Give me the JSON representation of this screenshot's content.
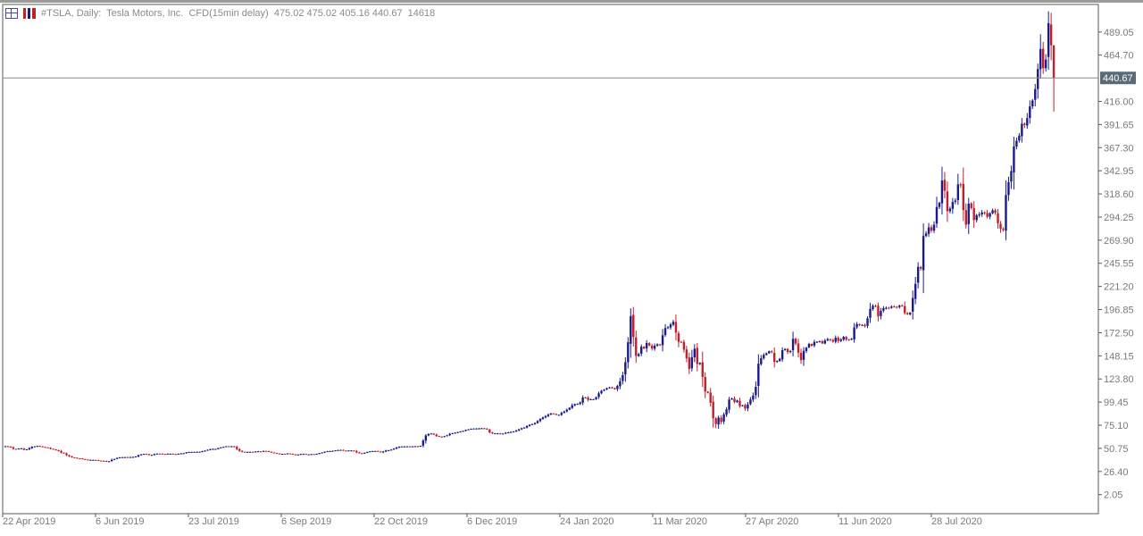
{
  "header": {
    "symbol_info": "#TSLA, Daily:  Tesla Motors, Inc.  CFD(15min delay)  475.02 475.02 405.16 440.67  14618",
    "icons": [
      "chart-grid-icon",
      "chart-bars-icon"
    ]
  },
  "colors": {
    "bull": "#1a1a8c",
    "bear": "#c0202b",
    "price_line": "#8a8a8a",
    "price_tag_bg": "#5a6a78",
    "axis_text": "#7a7a7a"
  },
  "chart_data": {
    "type": "candlestick",
    "title": "#TSLA, Daily",
    "ylim": [
      -18,
      518
    ],
    "y_ticks": [
      "489.05",
      "464.70",
      "416.00",
      "391.65",
      "367.30",
      "342.95",
      "318.60",
      "294.25",
      "269.90",
      "245.55",
      "221.20",
      "196.85",
      "172.50",
      "148.15",
      "123.80",
      "99.45",
      "75.10",
      "50.75",
      "26.40",
      "2.05"
    ],
    "x_ticks": [
      "22 Apr 2019",
      "6 Jun 2019",
      "23 Jul 2019",
      "6 Sep 2019",
      "22 Oct 2019",
      "6 Dec 2019",
      "24 Jan 2020",
      "11 Mar 2020",
      "27 Apr 2020",
      "11 Jun 2020",
      "28 Jul 2020"
    ],
    "current_price": "440.67",
    "last_bar": {
      "open": 475.02,
      "high": 475.02,
      "low": 405.16,
      "close": 440.67
    },
    "close_series": [
      53.0,
      52.6,
      51.9,
      50.2,
      49.9,
      50.5,
      50.8,
      49.4,
      49.7,
      51.0,
      52.4,
      52.8,
      53.3,
      52.8,
      52.2,
      51.8,
      51.3,
      50.3,
      49.6,
      48.8,
      47.9,
      46.2,
      45.5,
      43.6,
      42.3,
      41.3,
      40.9,
      40.2,
      40.0,
      39.5,
      39.0,
      38.6,
      38.6,
      38.6,
      38.3,
      37.8,
      37.7,
      37.4,
      36.7,
      37.2,
      38.8,
      39.6,
      40.6,
      41.3,
      41.4,
      41.5,
      41.3,
      41.6,
      41.7,
      42.2,
      43.5,
      44.4,
      44.9,
      44.6,
      43.6,
      43.8,
      44.7,
      45.2,
      45.1,
      44.8,
      44.6,
      45.1,
      45.1,
      44.7,
      44.5,
      45.0,
      45.5,
      45.6,
      46.6,
      46.9,
      47.0,
      47.0,
      47.1,
      47.1,
      47.8,
      48.4,
      49.2,
      49.9,
      50.1,
      50.1,
      51.1,
      51.7,
      52.4,
      53.0,
      52.8,
      52.9,
      52.4,
      50.0,
      48.1,
      47.1,
      46.9,
      47.0,
      47.1,
      47.0,
      47.4,
      47.6,
      47.5,
      48.0,
      47.8,
      47.2,
      46.4,
      45.9,
      45.3,
      45.0,
      45.0,
      44.8,
      45.4,
      45.0,
      44.4,
      43.9,
      44.2,
      44.8,
      44.9,
      44.4,
      44.4,
      44.7,
      44.6,
      44.9,
      45.8,
      46.3,
      47.2,
      47.7,
      47.9,
      48.1,
      48.6,
      48.9,
      49.1,
      48.4,
      48.2,
      48.5,
      48.5,
      48.0,
      46.5,
      45.6,
      45.3,
      46.0,
      47.0,
      47.6,
      47.9,
      48.0,
      47.4,
      46.5,
      47.4,
      48.5,
      48.8,
      49.4,
      50.5,
      51.6,
      52.4,
      52.7,
      52.8,
      52.8,
      52.7,
      52.8,
      53.0,
      52.7,
      53.4,
      59.0,
      64.3,
      65.8,
      66.3,
      65.3,
      63.7,
      63.1,
      62.9,
      63.5,
      64.5,
      66.1,
      66.7,
      67.3,
      67.8,
      68.5,
      69.2,
      70.2,
      70.7,
      71.3,
      71.6,
      71.6,
      71.7,
      71.9,
      71.5,
      70.7,
      67.5,
      66.5,
      66.5,
      66.5,
      66.0,
      66.3,
      67.3,
      67.6,
      68.0,
      68.5,
      69.6,
      70.7,
      72.0,
      72.6,
      74.3,
      75.7,
      76.2,
      77.4,
      79.5,
      81.6,
      83.3,
      84.7,
      86.3,
      87.5,
      87.1,
      86.0,
      86.0,
      88.0,
      89.5,
      91.4,
      93.5,
      96.0,
      97.3,
      97.5,
      99.1,
      104.3,
      104.0,
      101.8,
      102.4,
      102.5,
      104.5,
      108.6,
      111.4,
      112.4,
      114.0,
      114.9,
      114.3,
      113.2,
      116.5,
      121.3,
      127.8,
      141.5,
      162.5,
      190.0,
      168.0,
      148.0,
      150.0,
      157.7,
      156.0,
      161.6,
      159.1,
      155.8,
      158.8,
      160.2,
      159.5,
      169.8,
      177.4,
      178.2,
      181.2,
      183.9,
      172.5,
      162.8,
      162.7,
      154.7,
      145.5,
      134.4,
      146.7,
      155.6,
      139.5,
      140.7,
      126.0,
      110.6,
      109.2,
      98.7,
      82.4,
      76.3,
      83.1,
      78.5,
      86.4,
      91.8,
      102.1,
      103.2,
      99.4,
      101.1,
      95.2,
      96.1,
      92.6,
      97.0,
      102.2,
      106.4,
      115.5,
      139.8,
      145.6,
      149.2,
      150.8,
      153.0,
      151.9,
      141.8,
      142.7,
      145.0,
      154.1,
      155.2,
      152.0,
      153.1,
      166.1,
      161.1,
      151.4,
      143.6,
      153.4,
      156.7,
      160.6,
      158.8,
      162.8,
      163.0,
      163.4,
      161.2,
      164.2,
      165.7,
      164.7,
      163.1,
      167.2,
      163.8,
      165.4,
      168.1,
      165.2,
      165.1,
      166.0,
      178.0,
      181.6,
      180.6,
      180.7,
      179.2,
      187.6,
      197.5,
      200.8,
      200.2,
      189.6,
      195.4,
      198.4,
      198.7,
      198.5,
      200.0,
      199.8,
      199.5,
      201.0,
      200.7,
      193.2,
      191.9,
      193.5,
      209.1,
      223.9,
      241.7,
      240.0,
      274.3,
      277.0,
      283.4,
      279.8,
      286.2,
      304.8,
      309.2,
      332.6,
      322.0,
      300.4,
      303.1,
      310.1,
      311.6,
      328.6,
      327.8,
      301.5,
      286.2,
      308.3,
      303.7,
      291.2,
      296.2,
      297.0,
      299.1,
      298.7,
      294.4,
      298.2,
      301.3,
      298.7,
      287.6,
      281.8,
      280.7,
      317.4,
      331.0,
      342.6,
      368.6,
      374.6,
      380.0,
      392.5,
      391.0,
      398.3,
      410.7,
      416.9,
      429.0,
      450.0,
      471.0,
      451.0,
      460.0,
      498.3,
      475.02,
      440.67
    ]
  }
}
